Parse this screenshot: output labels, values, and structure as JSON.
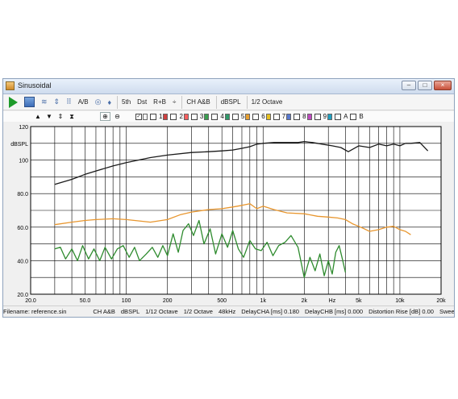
{
  "window": {
    "title": "Sinusoidal"
  },
  "toolbar": {
    "ab_label": "A/B",
    "fifth_label": "5th",
    "dst_label": "Dst",
    "rb_label": "R+B",
    "cm_label": "÷",
    "channel_label": "CH A&B",
    "unit_label": "dBSPL",
    "octave_label": "1/2 Octave"
  },
  "channels": {
    "numbers": [
      "1",
      "2",
      "3",
      "4",
      "5",
      "6",
      "7",
      "8",
      "9"
    ],
    "colors": [
      "#d04040",
      "#ff6060",
      "#3aa050",
      "#2f9a6a",
      "#e8a030",
      "#e6c020",
      "#5a7ad0",
      "#c04ac0",
      "#20a0c0"
    ],
    "a_label": "A",
    "b_label": "B"
  },
  "status": {
    "filename": "Filename: reference.sin",
    "channel": "CH A&B",
    "unit": "dBSPL",
    "smoothing": "1/12 Octave",
    "octave": "1/2 Octave",
    "rate": "48kHz",
    "delay_a": "DelayCHA [ms] 0.180",
    "delay_b": "DelayCHB [ms] 0.000",
    "distortion_rise": "Distortion Rise [dB] 0.00",
    "sweep": "SweepTi"
  },
  "chart_data": {
    "type": "line",
    "xscale": "log",
    "xlim": [
      20,
      20000
    ],
    "ylim": [
      20,
      120
    ],
    "ylabel": "dBSPL",
    "xlabel": "Hz",
    "y_ticks": [
      "20.0",
      "40.0",
      "60.0",
      "80.0",
      "100",
      "120"
    ],
    "x_ticks": [
      {
        "v": 20,
        "label": "20.0"
      },
      {
        "v": 50,
        "label": "50.0"
      },
      {
        "v": 100,
        "label": "100"
      },
      {
        "v": 200,
        "label": "200"
      },
      {
        "v": 500,
        "label": "500"
      },
      {
        "v": 1000,
        "label": "1k"
      },
      {
        "v": 2000,
        "label": "2k"
      },
      {
        "v": 5000,
        "label": "5k"
      },
      {
        "v": 10000,
        "label": "10k"
      },
      {
        "v": 20000,
        "label": "20k"
      }
    ],
    "grid": true,
    "series": [
      {
        "color": "#1a1a1a",
        "x": [
          30,
          40,
          50,
          60,
          80,
          100,
          150,
          200,
          300,
          400,
          500,
          600,
          700,
          800,
          900,
          1000,
          1200,
          1500,
          1800,
          2000,
          2300,
          2700,
          3200,
          3700,
          4200,
          5000,
          6000,
          7000,
          8000,
          9000,
          10000,
          11000,
          12000,
          14000,
          16000
        ],
        "y": [
          85.5,
          88.5,
          91.5,
          93.5,
          96.5,
          98.5,
          101.5,
          103,
          104.5,
          105,
          105.5,
          106,
          107,
          108,
          109.5,
          110,
          110.5,
          110.5,
          110.5,
          111,
          110.5,
          109.5,
          108.5,
          107.5,
          105,
          108.5,
          107.5,
          109.5,
          108.5,
          109.5,
          108.5,
          110,
          110,
          110.5,
          105.5
        ]
      },
      {
        "color": "#e8962e",
        "x": [
          30,
          40,
          50,
          60,
          80,
          100,
          150,
          200,
          250,
          300,
          400,
          500,
          600,
          700,
          800,
          900,
          1000,
          1200,
          1500,
          2000,
          2500,
          3000,
          3500,
          4000,
          4500,
          5000,
          5500,
          6000,
          7000,
          8000,
          9000,
          10000,
          11000,
          12000
        ],
        "y": [
          61.5,
          63,
          64,
          64.5,
          65,
          64.5,
          63,
          64.5,
          67.5,
          69,
          70.5,
          71,
          72,
          73,
          74,
          71,
          72.5,
          70.5,
          68.5,
          68,
          66.5,
          66,
          65.5,
          64.5,
          62,
          60.5,
          59,
          57.5,
          58.5,
          60,
          60.5,
          58.5,
          57.5,
          55.5
        ]
      },
      {
        "color": "#2e8b2e",
        "x": [
          30,
          33,
          36,
          40,
          44,
          48,
          53,
          58,
          64,
          70,
          78,
          86,
          95,
          105,
          115,
          125,
          140,
          155,
          170,
          185,
          200,
          220,
          240,
          260,
          285,
          310,
          340,
          370,
          410,
          450,
          500,
          550,
          600,
          660,
          720,
          800,
          880,
          970,
          1070,
          1180,
          1300,
          1450,
          1600,
          1800,
          2000,
          2200,
          2400,
          2600,
          2800,
          3000,
          3200,
          3400,
          3600,
          3800,
          4000
        ],
        "y": [
          47,
          48,
          41,
          47,
          40,
          49,
          41,
          47,
          40,
          48,
          41,
          47,
          49,
          42,
          48,
          40,
          44,
          48,
          42,
          49,
          43,
          56,
          45,
          58,
          62,
          55,
          64,
          50,
          59,
          44,
          56,
          48,
          58,
          47,
          42,
          52,
          47,
          46,
          51,
          43,
          49,
          51,
          55,
          48,
          30,
          42,
          34,
          44,
          31,
          40,
          32,
          45,
          49,
          41,
          33
        ]
      }
    ]
  }
}
